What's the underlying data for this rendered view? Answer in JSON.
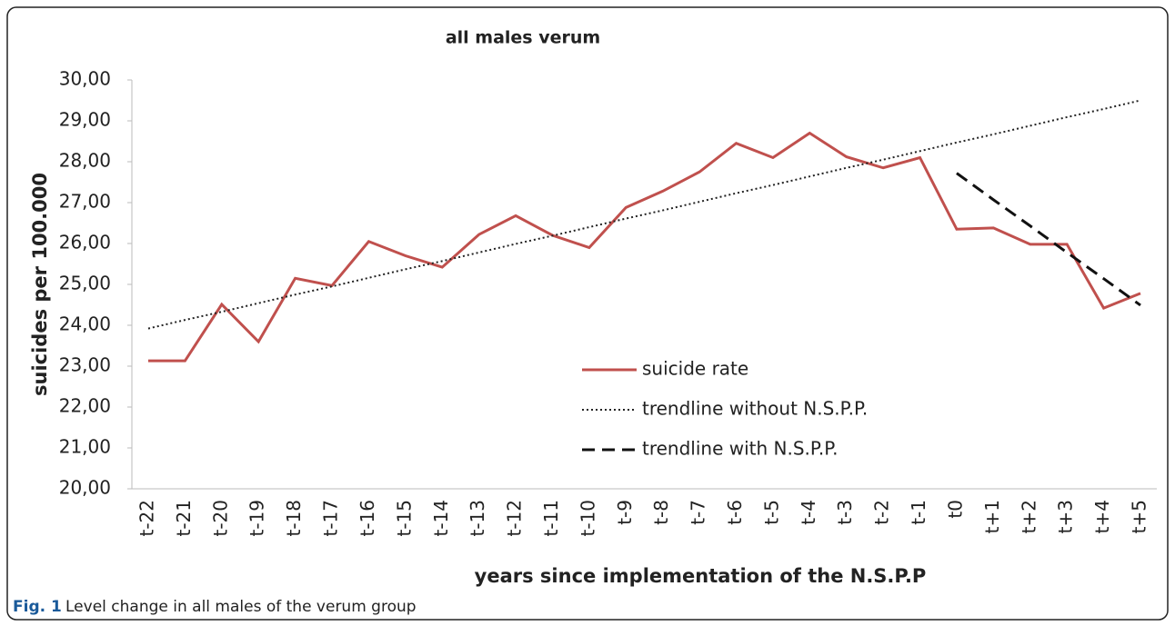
{
  "chart_data": {
    "type": "line",
    "title": "all males verum",
    "x_label": "years since implementation of the N.S.P.P",
    "y_label": "suicides per 100.000",
    "categories": [
      "t-22",
      "t-21",
      "t-20",
      "t-19",
      "t-18",
      "t-17",
      "t-16",
      "t-15",
      "t-14",
      "t-13",
      "t-12",
      "t-11",
      "t-10",
      "t-9",
      "t-8",
      "t-7",
      "t-6",
      "t-5",
      "t-4",
      "t-3",
      "t-2",
      "t-1",
      "t0",
      "t+1",
      "t+2",
      "t+3",
      "t+4",
      "t+5"
    ],
    "series": [
      {
        "name": "suicide rate",
        "color": "#c0504d",
        "dash": "solid",
        "values": [
          23.13,
          23.13,
          24.51,
          23.6,
          25.15,
          24.97,
          26.05,
          25.7,
          25.42,
          26.22,
          26.68,
          26.2,
          25.9,
          26.88,
          27.28,
          27.75,
          28.45,
          28.1,
          28.7,
          28.12,
          27.85,
          28.1,
          26.35,
          26.38,
          25.98,
          25.98,
          24.42,
          24.78
        ]
      },
      {
        "name": "trendline without N.S.P.P.",
        "color": "#222222",
        "dash": "dotted",
        "values": [
          23.92,
          24.13,
          24.33,
          24.54,
          24.75,
          24.95,
          25.16,
          25.37,
          25.57,
          25.78,
          25.99,
          26.19,
          26.4,
          26.61,
          26.81,
          27.02,
          27.23,
          27.43,
          27.64,
          27.85,
          28.05,
          28.26,
          28.47,
          28.67,
          28.88,
          29.09,
          29.29,
          29.5
        ]
      },
      {
        "name": "trendline with N.S.P.P.",
        "color": "#111111",
        "dash": "dashed",
        "values": [
          null,
          null,
          null,
          null,
          null,
          null,
          null,
          null,
          null,
          null,
          null,
          null,
          null,
          null,
          null,
          null,
          null,
          null,
          null,
          null,
          null,
          null,
          27.72,
          27.07,
          26.43,
          25.78,
          25.14,
          24.49
        ]
      }
    ],
    "ylim": [
      20,
      30
    ],
    "yticks": [
      {
        "value": 20,
        "label": "20,00"
      },
      {
        "value": 21,
        "label": "21,00"
      },
      {
        "value": 22,
        "label": "22,00"
      },
      {
        "value": 23,
        "label": "23,00"
      },
      {
        "value": 24,
        "label": "24,00"
      },
      {
        "value": 25,
        "label": "25,00"
      },
      {
        "value": 26,
        "label": "26,00"
      },
      {
        "value": 27,
        "label": "27,00"
      },
      {
        "value": 28,
        "label": "28,00"
      },
      {
        "value": 29,
        "label": "29,00"
      },
      {
        "value": 30,
        "label": "30,00"
      }
    ],
    "grid": false,
    "legend": "center"
  },
  "caption": {
    "label": "Fig. 1",
    "text": "Level change in all males of the verum group"
  }
}
